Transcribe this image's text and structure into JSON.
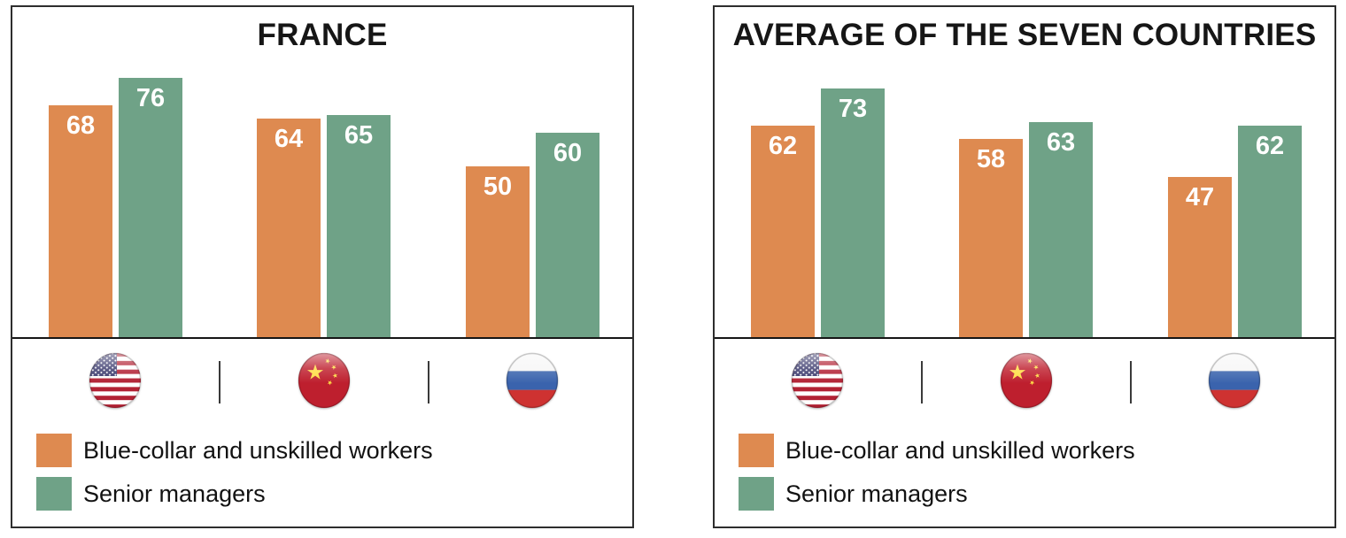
{
  "accent_colors": {
    "blue_collar_orange": "#DE8A50",
    "senior_manager_green": "#6FA287",
    "panel_border": "#2E2E2E",
    "baseline": "#161616",
    "value_label_text": "#FFFFFF",
    "title_text": "#161616"
  },
  "chart_data": [
    {
      "type": "bar",
      "title": "FRANCE",
      "categories": [
        "United States",
        "China",
        "Russia"
      ],
      "category_icons": [
        "us-flag-icon",
        "china-flag-icon",
        "russia-flag-icon"
      ],
      "series": [
        {
          "name": "Blue-collar and unskilled workers",
          "color": "#DE8A50",
          "values": [
            68,
            64,
            50
          ]
        },
        {
          "name": "Senior managers",
          "color": "#6FA287",
          "values": [
            76,
            65,
            60
          ]
        }
      ],
      "ylim": [
        0,
        100
      ],
      "grid": false,
      "value_labels": "inside-top",
      "legend_position": "bottom-left"
    },
    {
      "type": "bar",
      "title": "AVERAGE OF THE SEVEN COUNTRIES",
      "categories": [
        "United States",
        "China",
        "Russia"
      ],
      "category_icons": [
        "us-flag-icon",
        "china-flag-icon",
        "russia-flag-icon"
      ],
      "series": [
        {
          "name": "Blue-collar and unskilled workers",
          "color": "#DE8A50",
          "values": [
            62,
            58,
            47
          ]
        },
        {
          "name": "Senior managers",
          "color": "#6FA287",
          "values": [
            73,
            63,
            62
          ]
        }
      ],
      "ylim": [
        0,
        100
      ],
      "grid": false,
      "value_labels": "inside-top",
      "legend_position": "bottom-left"
    }
  ]
}
